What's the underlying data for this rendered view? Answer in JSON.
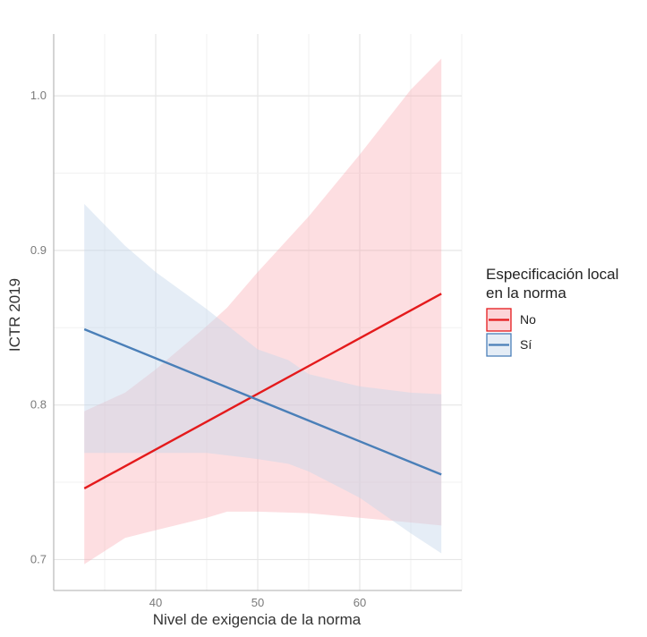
{
  "chart_data": {
    "type": "line",
    "xlabel": "Nivel de exigencia de la norma",
    "ylabel": "ICTR 2019",
    "xlim": [
      30,
      70
    ],
    "ylim": [
      0.68,
      1.04
    ],
    "x_ticks": [
      40,
      50,
      60
    ],
    "x_tick_labels": [
      "40",
      "50",
      "60"
    ],
    "y_ticks": [
      0.7,
      0.8,
      0.9,
      1.0
    ],
    "y_tick_labels": [
      "0.7",
      "0.8",
      "0.9",
      "1.0"
    ],
    "grid": true,
    "legend": {
      "title": "Especificación local\n en la norma",
      "placement": "right",
      "entries": [
        "No",
        "Sí"
      ]
    },
    "series": [
      {
        "name": "No",
        "color": "#e41a1c",
        "fill_color": "#f8a1a8",
        "x": [
          33,
          68
        ],
        "y": [
          0.746,
          0.872
        ],
        "ci_x": [
          33,
          37,
          40,
          45,
          47,
          50,
          55,
          60,
          65,
          68
        ],
        "ci_lower": [
          0.697,
          0.714,
          0.719,
          0.727,
          0.731,
          0.731,
          0.73,
          0.727,
          0.724,
          0.722
        ],
        "ci_upper": [
          0.796,
          0.808,
          0.823,
          0.851,
          0.863,
          0.886,
          0.922,
          0.962,
          1.004,
          1.024
        ]
      },
      {
        "name": "Sí",
        "color": "#4a7fb8",
        "fill_color": "#c6d7ea",
        "x": [
          33,
          68
        ],
        "y": [
          0.849,
          0.755
        ],
        "ci_x": [
          33,
          37,
          40,
          45,
          50,
          53,
          55,
          60,
          65,
          68
        ],
        "ci_lower": [
          0.769,
          0.769,
          0.769,
          0.769,
          0.765,
          0.762,
          0.757,
          0.74,
          0.717,
          0.704
        ],
        "ci_upper": [
          0.93,
          0.903,
          0.886,
          0.862,
          0.836,
          0.829,
          0.82,
          0.812,
          0.808,
          0.807
        ]
      }
    ]
  }
}
